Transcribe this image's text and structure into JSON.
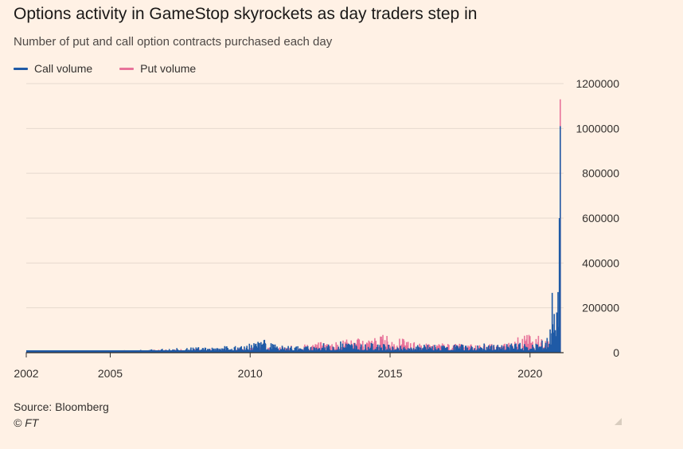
{
  "title": "Options activity in GameStop skyrockets as day traders step in",
  "subtitle": "Number of put and call option contracts purchased each day",
  "source": "Source: Bloomberg",
  "credit": "© FT",
  "colors": {
    "background": "#FFF1E5",
    "call": "#1F5AA6",
    "put": "#E8739A",
    "grid": "#E6D9CE",
    "axis": "#33302E"
  },
  "chart_data": {
    "type": "area",
    "title": "Options activity in GameStop skyrockets as day traders step in",
    "subtitle": "Number of put and call option contracts purchased each day",
    "xlabel": "",
    "ylabel": "",
    "xlim": [
      2002,
      2021.2
    ],
    "ylim": [
      0,
      1200000
    ],
    "x_ticks": [
      "2002",
      "2005",
      "2010",
      "2015",
      "2020"
    ],
    "y_ticks": [
      "1200000",
      "1000000",
      "800000",
      "600000",
      "400000",
      "200000",
      "0"
    ],
    "grid": true,
    "legend_position": "top-left",
    "series": [
      {
        "name": "Call volume",
        "color": "#1F5AA6",
        "x": [
          2002.0,
          2003.0,
          2004.0,
          2005.0,
          2006.0,
          2007.0,
          2008.0,
          2009.0,
          2009.5,
          2010.0,
          2010.5,
          2011.0,
          2011.5,
          2012.0,
          2012.5,
          2013.0,
          2013.3,
          2013.6,
          2014.0,
          2014.5,
          2015.0,
          2015.5,
          2016.0,
          2016.5,
          2017.0,
          2017.5,
          2018.0,
          2018.5,
          2019.0,
          2019.5,
          2020.0,
          2020.3,
          2020.5,
          2020.7,
          2020.8,
          2020.9,
          2021.0,
          2021.05,
          2021.08
        ],
        "values": [
          5000,
          4000,
          5000,
          8000,
          12000,
          18000,
          25000,
          30000,
          35000,
          40000,
          65000,
          30000,
          35000,
          30000,
          45000,
          35000,
          60000,
          55000,
          40000,
          45000,
          35000,
          30000,
          35000,
          40000,
          30000,
          40000,
          30000,
          45000,
          35000,
          45000,
          40000,
          50000,
          60000,
          90000,
          320000,
          100000,
          270000,
          600000,
          1010000
        ]
      },
      {
        "name": "Put volume",
        "color": "#E8739A",
        "x": [
          2002.0,
          2005.0,
          2007.0,
          2009.0,
          2011.0,
          2013.3,
          2014.5,
          2014.8,
          2016.0,
          2017.5,
          2019.0,
          2019.8,
          2020.3,
          2020.8,
          2021.0,
          2021.08
        ],
        "values": [
          4000,
          10000,
          15000,
          20000,
          25000,
          60000,
          75000,
          85000,
          45000,
          40000,
          40000,
          85000,
          75000,
          45000,
          40000,
          1130000
        ]
      }
    ]
  }
}
